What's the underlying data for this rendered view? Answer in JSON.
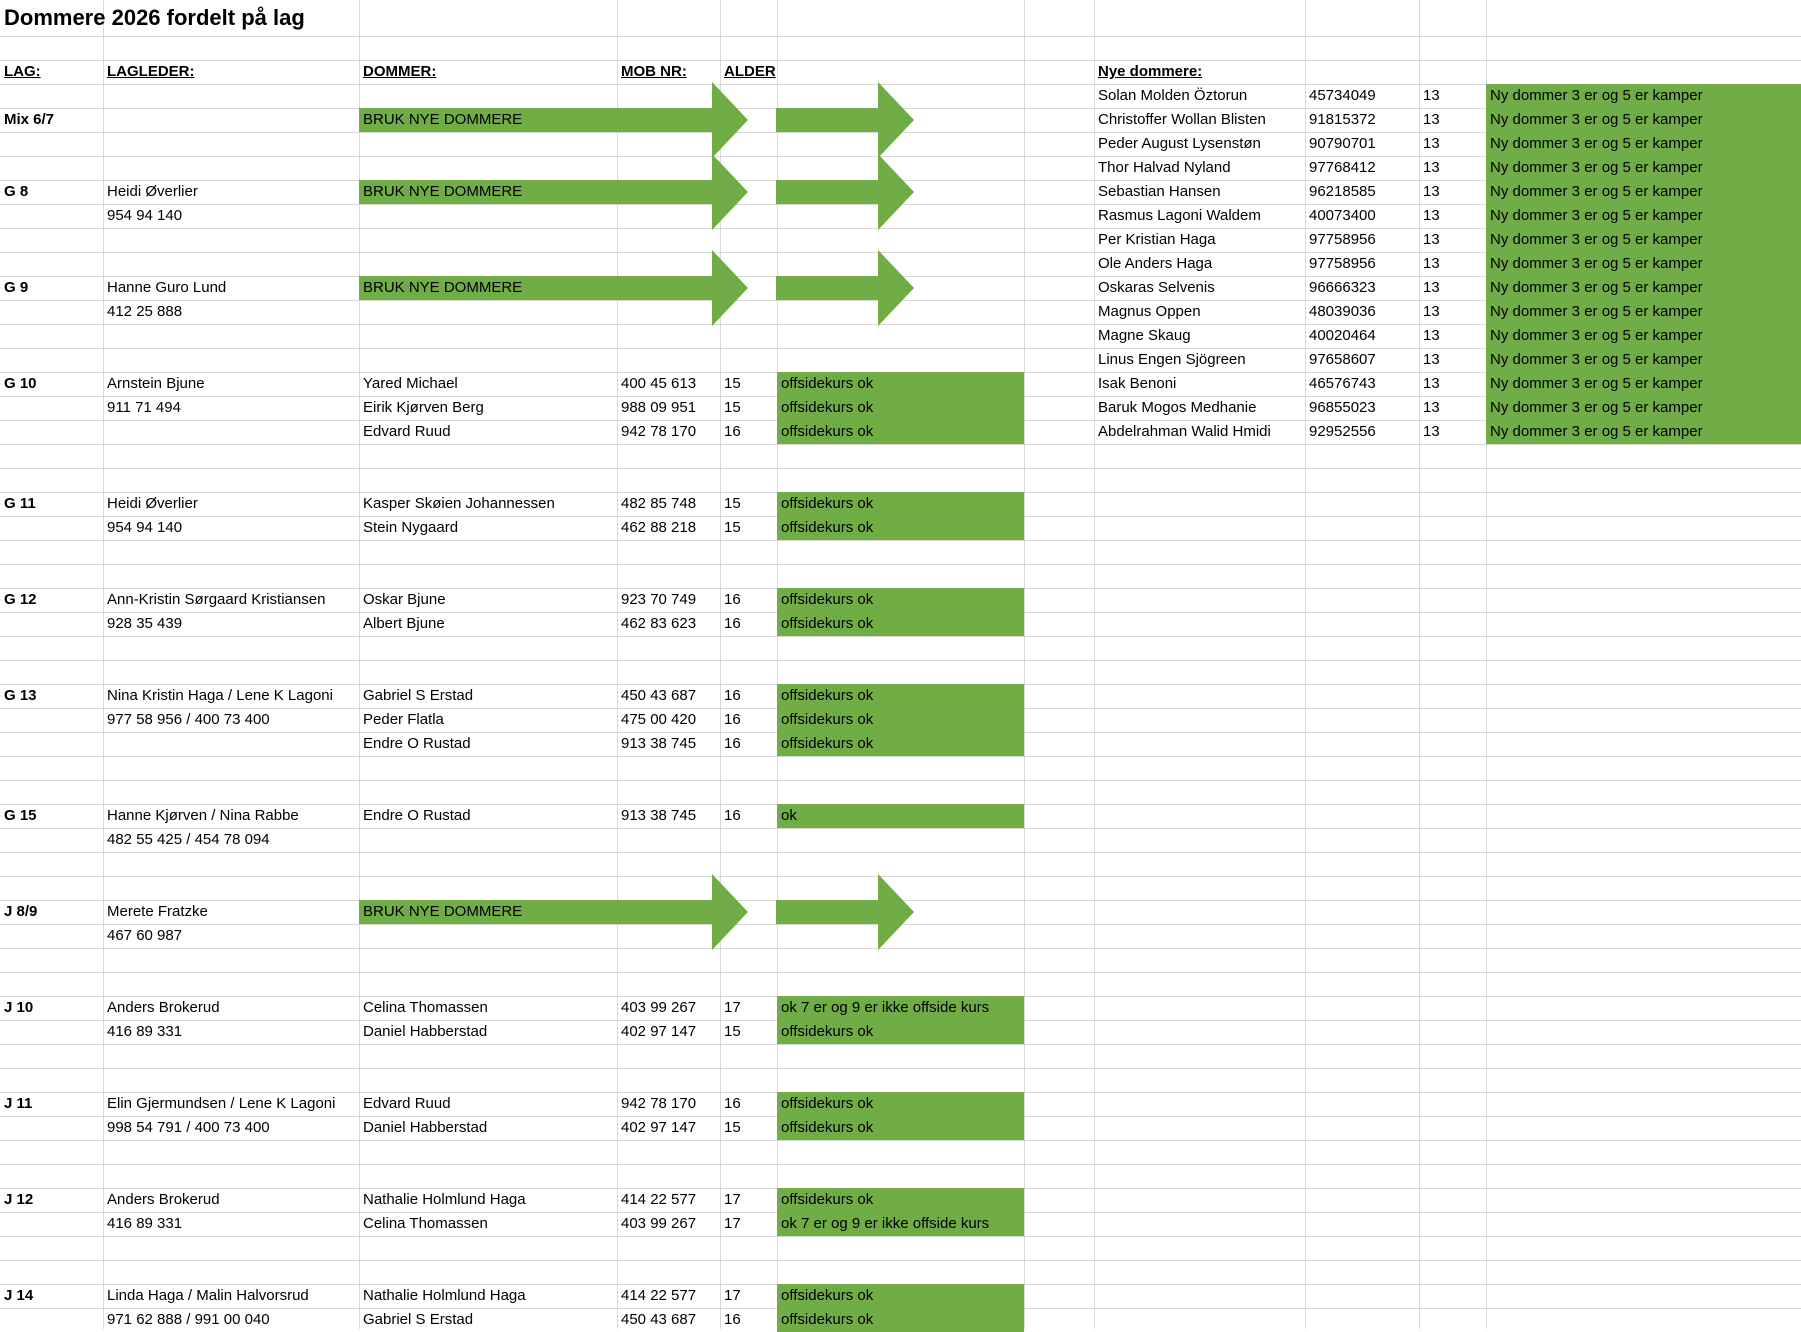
{
  "title": "Dommere 2026 fordelt på lag",
  "headers": {
    "lag": "LAG:",
    "lagleder": "LAGLEDER:",
    "dommer": "DOMMER:",
    "mob": "MOB NR:",
    "alder": "ALDER",
    "nye": "Nye dommere:"
  },
  "colors": {
    "green": "#70ad47",
    "grid": "#d9d9d9"
  },
  "rows": [
    {
      "r": 4,
      "lag": "Mix 6/7",
      "dommer": "BRUK NYE DOMMERE",
      "bruk": true
    },
    {
      "r": 7,
      "lag": "G 8",
      "lagleder": "Heidi Øverlier",
      "dommer": "BRUK NYE DOMMERE",
      "bruk": true
    },
    {
      "r": 8,
      "lagleder": "954 94 140"
    },
    {
      "r": 11,
      "lag": "G 9",
      "lagleder": "Hanne Guro Lund",
      "dommer": "BRUK NYE DOMMERE",
      "bruk": true
    },
    {
      "r": 12,
      "lagleder": "412 25 888"
    },
    {
      "r": 15,
      "lag": "G 10",
      "lagleder": "Arnstein Bjune",
      "dommer": "Yared Michael",
      "mob": "400 45 613",
      "alder": "15",
      "status": "offsidekurs ok"
    },
    {
      "r": 16,
      "lagleder": "911 71 494",
      "dommer": "Eirik Kjørven Berg",
      "mob": "988 09 951",
      "alder": "15",
      "status": "offsidekurs ok"
    },
    {
      "r": 17,
      "dommer": "Edvard Ruud",
      "mob": "942 78 170",
      "alder": "16",
      "status": "offsidekurs ok"
    },
    {
      "r": 20,
      "lag": "G 11",
      "lagleder": "Heidi Øverlier",
      "dommer": "Kasper Skøien Johannessen",
      "mob": "482 85 748",
      "alder": "15",
      "status": "offsidekurs ok"
    },
    {
      "r": 21,
      "lagleder": "954 94 140",
      "dommer": "Stein Nygaard",
      "mob": "462 88 218",
      "alder": "15",
      "status": "offsidekurs ok"
    },
    {
      "r": 24,
      "lag": "G 12",
      "lagleder": "Ann-Kristin Sørgaard Kristiansen",
      "dommer": "Oskar Bjune",
      "mob": "923 70 749",
      "alder": "16",
      "status": "offsidekurs ok"
    },
    {
      "r": 25,
      "lagleder": "928 35 439",
      "dommer": "Albert Bjune",
      "mob": "462 83 623",
      "alder": "16",
      "status": "offsidekurs ok"
    },
    {
      "r": 28,
      "lag": "G 13",
      "lagleder": "Nina Kristin Haga / Lene K Lagoni",
      "dommer": "Gabriel S Erstad",
      "mob": "450 43 687",
      "alder": "16",
      "status": "offsidekurs ok"
    },
    {
      "r": 29,
      "lagleder": "977 58 956 / 400 73 400",
      "dommer": "Peder Flatla",
      "mob": "475 00 420",
      "alder": "16",
      "status": "offsidekurs ok"
    },
    {
      "r": 30,
      "dommer": "Endre O Rustad",
      "mob": "913 38 745",
      "alder": "16",
      "status": "offsidekurs ok"
    },
    {
      "r": 33,
      "lag": "G 15",
      "lagleder": "Hanne Kjørven / Nina Rabbe",
      "dommer": "Endre O Rustad",
      "mob": "913 38 745",
      "alder": "16",
      "status": "ok"
    },
    {
      "r": 34,
      "lagleder": "482 55 425 / 454 78 094"
    },
    {
      "r": 37,
      "lag": "J 8/9",
      "lagleder": "Merete Fratzke",
      "dommer": "BRUK NYE DOMMERE",
      "bruk": true
    },
    {
      "r": 38,
      "lagleder": "467 60 987"
    },
    {
      "r": 41,
      "lag": "J 10",
      "lagleder": "Anders Brokerud",
      "dommer": "Celina Thomassen",
      "mob": "403 99 267",
      "alder": "17",
      "status": "ok 7 er og 9 er ikke offside kurs"
    },
    {
      "r": 42,
      "lagleder": "416 89 331",
      "dommer": "Daniel Habberstad",
      "mob": "402 97 147",
      "alder": "15",
      "status": "offsidekurs ok"
    },
    {
      "r": 45,
      "lag": "J 11",
      "lagleder": "Elin Gjermundsen / Lene K Lagoni",
      "dommer": "Edvard Ruud",
      "mob": "942 78 170",
      "alder": "16",
      "status": "offsidekurs ok"
    },
    {
      "r": 46,
      "lagleder": "998 54 791 / 400 73 400",
      "dommer": "Daniel Habberstad",
      "mob": "402 97 147",
      "alder": "15",
      "status": "offsidekurs ok"
    },
    {
      "r": 49,
      "lag": "J 12",
      "lagleder": "Anders Brokerud",
      "dommer": "Nathalie Holmlund Haga",
      "mob": "414 22 577",
      "alder": "17",
      "status": "offsidekurs ok"
    },
    {
      "r": 50,
      "lagleder": "416 89 331",
      "dommer": "Celina Thomassen",
      "mob": "403 99 267",
      "alder": "17",
      "status": "ok 7 er og 9 er ikke offside kurs"
    },
    {
      "r": 53,
      "lag": "J 14",
      "lagleder": "Linda Haga / Malin Halvorsrud",
      "dommer": "Nathalie Holmlund Haga",
      "mob": "414 22 577",
      "alder": "17",
      "status": "offsidekurs ok"
    },
    {
      "r": 54,
      "lagleder": "971 62 888 / 991 00 040",
      "dommer": "Gabriel S Erstad",
      "mob": "450 43 687",
      "alder": "16",
      "status": "offsidekurs ok"
    }
  ],
  "nye_dommere": [
    {
      "name": "Solan Molden Öztorun",
      "mob": "45734049",
      "alder": "13",
      "note": "Ny dommer 3 er og 5 er kamper"
    },
    {
      "name": "Christoffer Wollan Blisten",
      "mob": "91815372",
      "alder": "13",
      "note": "Ny dommer 3 er og 5 er kamper"
    },
    {
      "name": "Peder August Lysenstøn",
      "mob": "90790701",
      "alder": "13",
      "note": "Ny dommer 3 er og 5 er kamper"
    },
    {
      "name": "Thor Halvad Nyland",
      "mob": "97768412",
      "alder": "13",
      "note": "Ny dommer 3 er og 5 er kamper"
    },
    {
      "name": "Sebastian Hansen",
      "mob": "96218585",
      "alder": "13",
      "note": "Ny dommer 3 er og 5 er kamper"
    },
    {
      "name": "Rasmus Lagoni Waldem",
      "mob": "40073400",
      "alder": "13",
      "note": "Ny dommer 3 er og 5 er kamper"
    },
    {
      "name": "Per Kristian Haga",
      "mob": "97758956",
      "alder": "13",
      "note": "Ny dommer 3 er og 5 er kamper"
    },
    {
      "name": "Ole Anders Haga",
      "mob": "97758956",
      "alder": "13",
      "note": "Ny dommer 3 er og 5 er kamper"
    },
    {
      "name": "Oskaras Selvenis",
      "mob": "96666323",
      "alder": "13",
      "note": "Ny dommer 3 er og 5 er kamper"
    },
    {
      "name": "Magnus Oppen",
      "mob": "48039036",
      "alder": "13",
      "note": "Ny dommer 3 er og 5 er kamper"
    },
    {
      "name": "Magne Skaug",
      "mob": "40020464",
      "alder": "13",
      "note": "Ny dommer 3 er og 5 er kamper"
    },
    {
      "name": "Linus Engen Sjögreen",
      "mob": "97658607",
      "alder": "13",
      "note": "Ny dommer 3 er og 5 er kamper"
    },
    {
      "name": "Isak Benoni",
      "mob": "46576743",
      "alder": "13",
      "note": "Ny dommer 3 er og 5 er kamper"
    },
    {
      "name": "Baruk Mogos Medhanie",
      "mob": "96855023",
      "alder": "13",
      "note": "Ny dommer 3 er og 5 er kamper"
    },
    {
      "name": "Abdelrahman Walid Hmidi",
      "mob": "92952556",
      "alder": "13",
      "note": "Ny dommer 3 er og 5 er kamper"
    }
  ]
}
